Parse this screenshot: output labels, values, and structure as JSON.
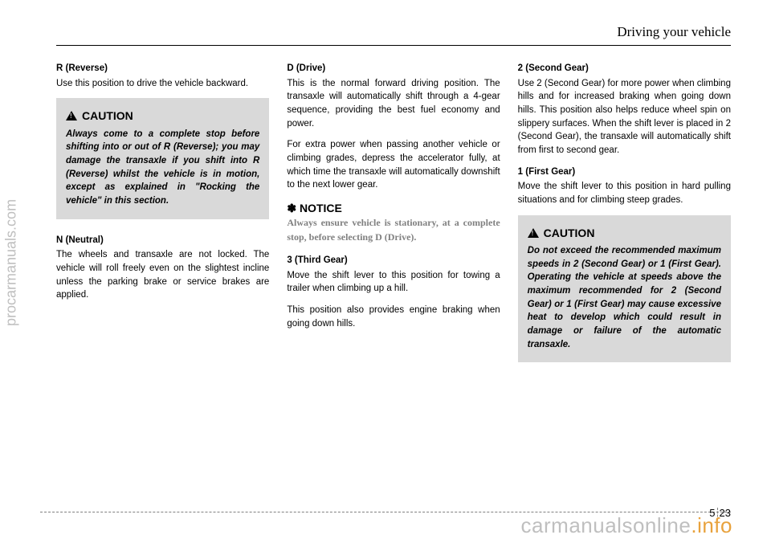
{
  "header": {
    "title": "Driving your vehicle"
  },
  "col1": {
    "reverse": {
      "title": "R (Reverse)",
      "text": "Use this position to drive the vehicle backward."
    },
    "caution": {
      "label": "CAUTION",
      "body": "Always come to a complete stop before shifting into or out of R (Reverse); you may damage the transaxle if you shift into R (Reverse) whilst the vehicle is in motion, except as explained in \"Rocking the vehicle\" in this section."
    },
    "neutral": {
      "title": "N (Neutral)",
      "text": "The wheels and transaxle are not locked. The vehicle will roll freely even on the slightest incline unless the parking brake or service brakes are applied."
    }
  },
  "col2": {
    "drive": {
      "title": "D (Drive)",
      "p1": "This is the normal forward driving position. The transaxle will automatically shift through a 4-gear sequence, providing the best fuel economy and power.",
      "p2": "For extra power when passing another vehicle or climbing grades, depress the accelerator fully, at which time the transaxle will automatically downshift to the next lower gear."
    },
    "notice": {
      "label": "✽ NOTICE",
      "body": "Always ensure vehicle is stationary, at a complete stop, before selecting D (Drive)."
    },
    "third": {
      "title": "3 (Third Gear)",
      "p1": "Move the shift lever to this position for towing a trailer when climbing up a hill.",
      "p2": "This position also provides engine braking when going down hills."
    }
  },
  "col3": {
    "second": {
      "title": "2 (Second Gear)",
      "text": "Use 2 (Second Gear) for more power when climbing hills and for increased braking when going down hills. This position also helps reduce wheel spin on slippery surfaces. When the shift lever is placed in 2 (Second Gear), the transaxle will automatically shift from first to second gear."
    },
    "first": {
      "title": "1 (First Gear)",
      "text": "Move the shift lever to this position in hard pulling situations and for climbing steep grades."
    },
    "caution": {
      "label": "CAUTION",
      "body": "Do not exceed the recommended maximum speeds in 2 (Second Gear) or 1 (First Gear). Operating the vehicle at speeds above the maximum recommended for 2 (Second Gear) or 1 (First Gear) may cause excessive heat to develop which could result in damage or failure of the automatic transaxle."
    }
  },
  "watermarks": {
    "left": "procarmanuals.com",
    "bottom_gray": "carmanualsonline",
    "bottom_orange": ".info"
  },
  "pagenum": {
    "chapter": "5",
    "page": "23"
  }
}
